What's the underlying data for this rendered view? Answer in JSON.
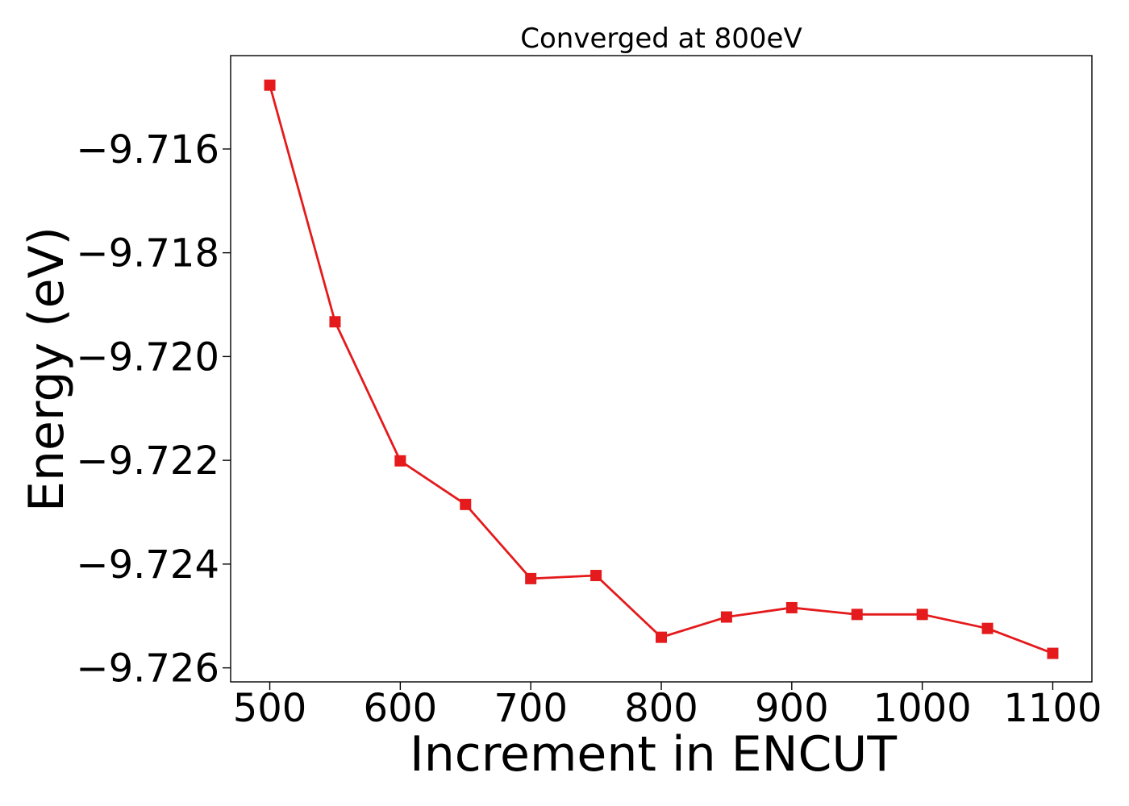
{
  "chart_data": {
    "type": "line",
    "title": "Converged at 800eV",
    "xlabel": "Increment in ENCUT",
    "ylabel": "Energy (eV)",
    "x": [
      500,
      550,
      600,
      650,
      700,
      750,
      800,
      850,
      900,
      950,
      1000,
      1050,
      1100
    ],
    "series": [
      {
        "values": [
          -9.71477,
          -9.71933,
          -9.72201,
          -9.72285,
          -9.72428,
          -9.72422,
          -9.72541,
          -9.72502,
          -9.72484,
          -9.72497,
          -9.72497,
          -9.72524,
          -9.72572
        ],
        "color": "#e41a1c",
        "marker": "square"
      }
    ],
    "xlim": [
      470,
      1130
    ],
    "ylim": [
      -9.72627,
      -9.7142
    ],
    "xticks": [
      500,
      600,
      700,
      800,
      900,
      1000,
      1100
    ],
    "xtick_labels": [
      "500",
      "600",
      "700",
      "800",
      "900",
      "1000",
      "1100"
    ],
    "yticks": [
      -9.716,
      -9.718,
      -9.72,
      -9.722,
      -9.724,
      -9.726
    ],
    "ytick_labels": [
      "−9.716",
      "−9.718",
      "−9.720",
      "−9.722",
      "−9.724",
      "−9.726"
    ],
    "grid": false,
    "legend": false
  }
}
